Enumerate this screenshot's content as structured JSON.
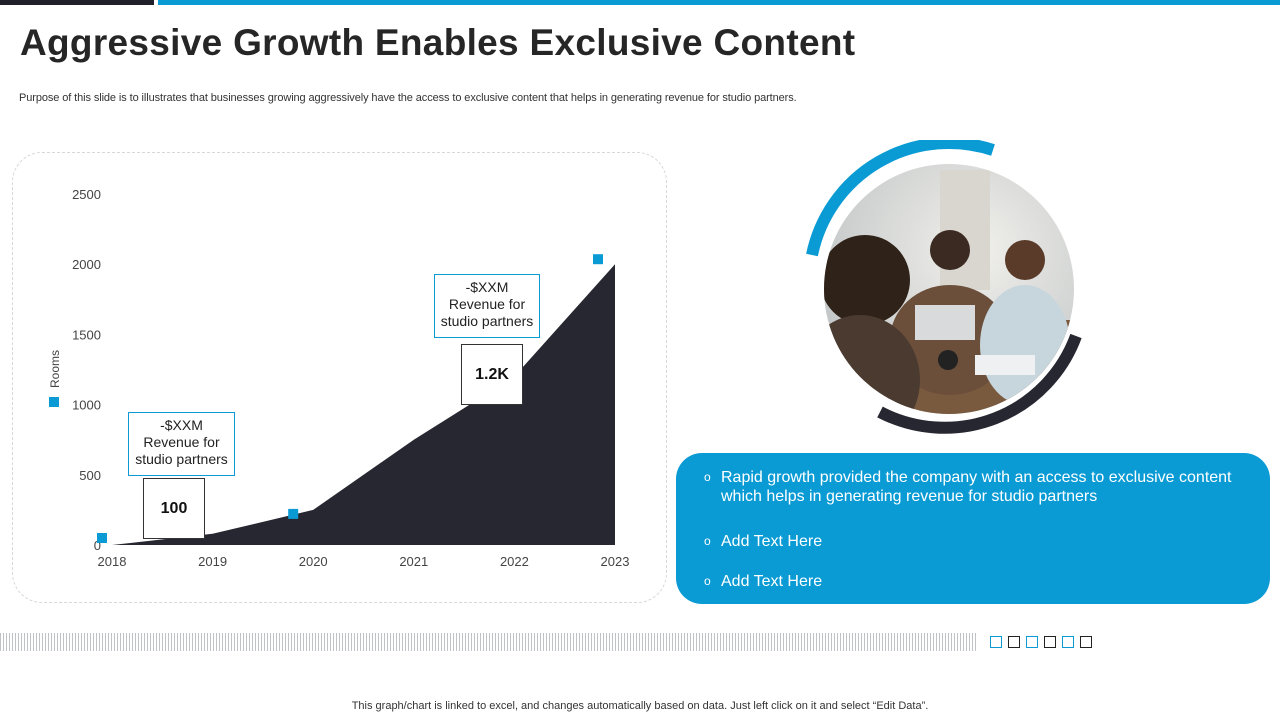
{
  "slide": {
    "title": "Aggressive Growth Enables Exclusive Content",
    "subtitle": "Purpose of this slide is to illustrates that businesses growing aggressively have the access to exclusive content that helps in generating revenue for studio partners.",
    "footnote": "This graph/chart is linked to excel, and changes automatically based on data. Just left click on it and select “Edit Data”."
  },
  "chart_data": {
    "type": "area",
    "title": "",
    "xlabel": "",
    "ylabel": "Rooms",
    "x": [
      "2018",
      "2019",
      "2020",
      "2021",
      "2022",
      "2023"
    ],
    "series": [
      {
        "values": [
          0,
          80,
          250,
          750,
          1200,
          2000
        ],
        "color": "#262730"
      }
    ],
    "ylim": [
      0,
      2500
    ],
    "yticks": [
      "0",
      "500",
      "1000",
      "1500",
      "2000",
      "2500"
    ],
    "legend_marker_color": "#0a9bd5",
    "annotations": [
      {
        "text": "-$XXM\nRevenue for\nstudio partners",
        "value_label": "100"
      },
      {
        "text": "-$XXM\nRevenue for\nstudio partners",
        "value_label": "1.2K"
      }
    ]
  },
  "colors": {
    "accent": "#0a9bd5",
    "dark": "#1f2029"
  },
  "info_box": {
    "items": [
      "Rapid growth provided the company with an access to exclusive content which helps in generating revenue for studio partners",
      "Add Text Here",
      "Add Text Here"
    ],
    "bullet": "o"
  },
  "photo": {
    "icon": "team-meeting-photo"
  },
  "pager": {
    "squares": [
      "blue",
      "dark",
      "blue",
      "dark",
      "blue",
      "dark"
    ]
  }
}
